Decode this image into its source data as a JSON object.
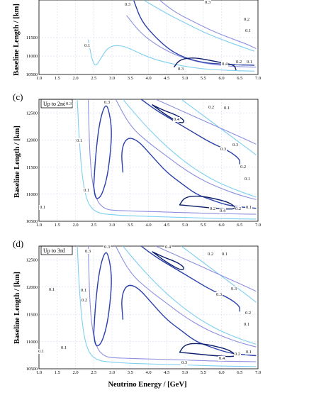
{
  "chart_data": [
    {
      "type": "line",
      "panel_label": "",
      "box_label": "",
      "xlabel": "",
      "ylabel": "Baseline Length / [km]",
      "xlim": [
        1.0,
        7.0
      ],
      "ylim": [
        10500,
        12750
      ],
      "x_ticks": [
        "1.0",
        "1.5",
        "2.0",
        "2.5",
        "3.0",
        "3.5",
        "4.0",
        "4.5",
        "5.0",
        "5.5",
        "6.0",
        "6.5",
        "7.0"
      ],
      "y_ticks": [
        "10500",
        "11000",
        "11500"
      ],
      "contour_labels": [
        "0.3",
        "0.2",
        "0.1",
        "0.1",
        "0.3",
        "0.4",
        "0.2",
        "0.1",
        "0.3"
      ],
      "series": [
        {
          "level": 0.1,
          "color": "#7ecfef",
          "x": [
            2.35,
            2.45,
            2.55,
            2.7,
            2.9,
            3.2,
            3.5,
            3.8,
            4.2,
            4.6,
            5.0,
            5.5,
            6.0,
            6.5,
            6.9
          ],
          "y": [
            11450,
            10900,
            10700,
            10950,
            11250,
            11300,
            11200,
            11050,
            10900,
            10800,
            10720,
            10650,
            10620,
            10600,
            10590
          ]
        },
        {
          "level": 0.1,
          "color": "#7ecfef",
          "x": [
            3.9,
            4.5,
            5.0,
            5.5,
            6.0,
            6.5,
            6.9
          ],
          "y": [
            12500,
            12150,
            11900,
            11650,
            11450,
            11270,
            11130
          ]
        },
        {
          "level": 0.2,
          "color": "#8c8fe0",
          "x": [
            4.2,
            4.7,
            5.2,
            5.7,
            6.2,
            6.7,
            6.95
          ],
          "y": [
            12600,
            12200,
            11950,
            11700,
            11500,
            11320,
            11200
          ]
        },
        {
          "level": 0.2,
          "color": "#8c8fe0",
          "x": [
            3.4,
            3.8,
            4.3,
            4.8,
            5.3,
            5.8,
            6.3,
            6.8,
            6.95
          ],
          "y": [
            12100,
            11600,
            11250,
            11000,
            10850,
            10760,
            10720,
            10700,
            10700
          ]
        },
        {
          "level": 0.3,
          "color": "#2a3fa8",
          "x": [
            3.6,
            3.8,
            4.2,
            4.6,
            5.0,
            5.5,
            6.0,
            6.5,
            6.9
          ],
          "y": [
            12500,
            11950,
            11500,
            11150,
            10950,
            10820,
            10780,
            10760,
            10750
          ]
        },
        {
          "level": 0.4,
          "color": "#0d1f6b",
          "x": [
            4.7,
            4.85,
            5.2,
            5.6,
            6.0,
            6.35,
            6.4
          ],
          "y": [
            10700,
            10900,
            10960,
            10900,
            10820,
            10760,
            10620
          ]
        }
      ]
    },
    {
      "type": "line",
      "panel_label": "(c)",
      "box_label": "Up to 2nd",
      "xlabel": "",
      "ylabel": "Baseline Length / [km]",
      "xlim": [
        1.0,
        7.0
      ],
      "ylim": [
        10500,
        12750
      ],
      "x_ticks": [
        "1.0",
        "1.5",
        "2.0",
        "2.5",
        "3.0",
        "3.5",
        "4.0",
        "4.5",
        "5.0",
        "5.5",
        "6.0",
        "6.5",
        "7.0"
      ],
      "y_ticks": [
        "10500",
        "11000",
        "11500",
        "12000",
        "12500"
      ],
      "contour_labels": [
        "0.3",
        "0.3",
        "0.1",
        "0.1",
        "0.4",
        "0.2",
        "0.1",
        "0.3",
        "0.3",
        "0.2",
        "0.1",
        "0.2",
        "0.4",
        "0.2",
        "0.1",
        "0.1"
      ],
      "series": [
        {
          "level": 0.1,
          "color": "#7ecfef",
          "x": [
            2.05,
            2.1,
            2.2,
            2.35,
            2.6,
            3.0,
            3.5,
            4.0,
            4.5,
            5.0,
            5.5,
            6.0,
            6.5,
            6.95
          ],
          "y": [
            12750,
            12000,
            11200,
            10800,
            10650,
            10620,
            10600,
            10590,
            10580,
            10570,
            10560,
            10550,
            10545,
            10540
          ]
        },
        {
          "level": 0.1,
          "color": "#7ecfef",
          "x": [
            4.9,
            5.3,
            5.8,
            6.3,
            6.8,
            6.95
          ],
          "y": [
            12750,
            12550,
            12300,
            12050,
            11800,
            11720
          ]
        },
        {
          "level": 0.1,
          "color": "#7ecfef",
          "x": [
            3.3,
            3.8,
            4.3,
            4.8,
            5.3,
            5.8,
            6.3,
            6.8,
            6.95
          ],
          "y": [
            12750,
            12350,
            12000,
            11700,
            11450,
            11250,
            11100,
            10980,
            10950
          ]
        },
        {
          "level": 0.2,
          "color": "#8c8fe0",
          "x": [
            2.35,
            2.4,
            2.55,
            2.8,
            3.1,
            3.5,
            4.0,
            4.5,
            5.0,
            5.5,
            6.0,
            6.5,
            6.95
          ],
          "y": [
            12750,
            11500,
            10900,
            10720,
            10700,
            10690,
            10680,
            10670,
            10660,
            10650,
            10640,
            10635,
            10630
          ]
        },
        {
          "level": 0.2,
          "color": "#8c8fe0",
          "x": [
            3.1,
            3.5,
            4.0,
            4.5,
            5.0,
            5.5,
            6.0,
            6.5,
            6.95
          ],
          "y": [
            12750,
            12250,
            11950,
            11700,
            11450,
            11250,
            11100,
            10980,
            10900
          ]
        },
        {
          "level": 0.2,
          "color": "#8c8fe0",
          "x": [
            4.2,
            4.7,
            5.2,
            5.7,
            6.2,
            6.7,
            6.95
          ],
          "y": [
            12750,
            12600,
            12450,
            12300,
            12150,
            12000,
            11920
          ]
        },
        {
          "level": 0.3,
          "color": "#2a3fa8",
          "x": [
            2.5,
            2.55,
            2.65,
            2.8,
            2.9,
            3.0,
            2.95,
            2.85,
            2.7,
            2.55,
            2.5
          ],
          "y": [
            11150,
            11700,
            12300,
            12650,
            12600,
            12200,
            11700,
            11250,
            10950,
            10900,
            11150
          ]
        },
        {
          "level": 0.3,
          "color": "#2a3fa8",
          "x": [
            3.3,
            3.25,
            3.4,
            3.7,
            4.1,
            4.5,
            4.9,
            5.3,
            5.7,
            6.0,
            6.3,
            6.6,
            6.95
          ],
          "y": [
            11400,
            11800,
            12050,
            12000,
            11700,
            11400,
            11200,
            11000,
            10900,
            10830,
            10780,
            10760,
            10740
          ]
        },
        {
          "level": 0.3,
          "color": "#2a3fa8",
          "x": [
            3.8,
            4.2,
            4.7,
            5.2,
            5.7,
            6.2,
            6.5,
            6.5
          ],
          "y": [
            12750,
            12550,
            12350,
            12150,
            11950,
            11800,
            11650,
            11550
          ]
        },
        {
          "level": 0.4,
          "color": "#0d1f6b",
          "x": [
            4.1,
            4.4,
            4.8,
            5.0,
            4.9,
            4.5,
            4.2,
            4.1
          ],
          "y": [
            12650,
            12550,
            12450,
            12350,
            12300,
            12450,
            12600,
            12650
          ]
        },
        {
          "level": 0.4,
          "color": "#0d1f6b",
          "x": [
            4.85,
            5.0,
            5.4,
            5.8,
            6.2,
            6.4,
            6.3,
            5.8,
            5.2,
            4.9,
            4.85
          ],
          "y": [
            10800,
            10950,
            10970,
            10920,
            10850,
            10750,
            10720,
            10740,
            10780,
            10800,
            10800
          ]
        }
      ]
    },
    {
      "type": "line",
      "panel_label": "(d)",
      "box_label": "Up to 3rd",
      "xlabel": "Neutrino Energy / [GeV]",
      "ylabel": "Baseline Length / [km]",
      "xlim": [
        1.0,
        7.0
      ],
      "ylim": [
        10500,
        12750
      ],
      "x_ticks": [
        "1.0",
        "1.5",
        "2.0",
        "2.5",
        "3.0",
        "3.5",
        "4.0",
        "4.5",
        "5.0",
        "5.5",
        "6.0",
        "6.5",
        "7.0"
      ],
      "y_ticks": [
        "10500",
        "11000",
        "11500",
        "12000",
        "12500"
      ],
      "contour_labels": [
        "0.3",
        "0.3",
        "0.1",
        "0.4",
        "0.2",
        "0.1",
        "0.1",
        "0.1",
        "0.2",
        "0.3",
        "0.3",
        "0.2",
        "0.1",
        "0.2",
        "0.1",
        "0.1",
        "0.4",
        "0.3"
      ],
      "series": [
        {
          "level": 0.1,
          "color": "#7ecfef",
          "x": [
            2.05,
            2.1,
            2.2,
            2.35,
            2.6,
            3.0,
            3.5,
            4.0,
            4.5,
            5.0,
            5.5,
            6.0,
            6.5,
            6.95
          ],
          "y": [
            12750,
            12000,
            11200,
            10800,
            10650,
            10620,
            10600,
            10590,
            10580,
            10570,
            10560,
            10550,
            10545,
            10540
          ]
        },
        {
          "level": 0.1,
          "color": "#7ecfef",
          "x": [
            4.9,
            5.3,
            5.8,
            6.3,
            6.8,
            6.95
          ],
          "y": [
            12750,
            12550,
            12300,
            12050,
            11800,
            11720
          ]
        },
        {
          "level": 0.1,
          "color": "#7ecfef",
          "x": [
            3.3,
            3.8,
            4.3,
            4.8,
            5.3,
            5.8,
            6.3,
            6.8,
            6.95
          ],
          "y": [
            12750,
            12350,
            12000,
            11700,
            11450,
            11250,
            11100,
            10980,
            10950
          ]
        },
        {
          "level": 0.2,
          "color": "#8c8fe0",
          "x": [
            2.35,
            2.4,
            2.55,
            2.8,
            3.1,
            3.5,
            4.0,
            4.5,
            5.0,
            5.5,
            6.0,
            6.5,
            6.95
          ],
          "y": [
            12750,
            11500,
            10900,
            10720,
            10700,
            10690,
            10680,
            10670,
            10660,
            10650,
            10640,
            10635,
            10630
          ]
        },
        {
          "level": 0.2,
          "color": "#8c8fe0",
          "x": [
            3.1,
            3.5,
            4.0,
            4.5,
            5.0,
            5.5,
            6.0,
            6.5,
            6.95
          ],
          "y": [
            12750,
            12250,
            11950,
            11700,
            11450,
            11250,
            11100,
            10980,
            10900
          ]
        },
        {
          "level": 0.2,
          "color": "#8c8fe0",
          "x": [
            4.2,
            4.7,
            5.2,
            5.7,
            6.2,
            6.7,
            6.95
          ],
          "y": [
            12750,
            12600,
            12450,
            12300,
            12150,
            12000,
            11920
          ]
        },
        {
          "level": 0.3,
          "color": "#2a3fa8",
          "x": [
            2.5,
            2.55,
            2.65,
            2.8,
            2.9,
            3.0,
            2.95,
            2.85,
            2.7,
            2.55,
            2.5
          ],
          "y": [
            11150,
            11700,
            12300,
            12650,
            12600,
            12200,
            11700,
            11250,
            10950,
            10900,
            11150
          ]
        },
        {
          "level": 0.3,
          "color": "#2a3fa8",
          "x": [
            3.3,
            3.25,
            3.4,
            3.7,
            4.1,
            4.5,
            4.9,
            5.3,
            5.7,
            6.0,
            6.3,
            6.6,
            6.95
          ],
          "y": [
            11400,
            11800,
            12050,
            12000,
            11700,
            11400,
            11200,
            11000,
            10900,
            10830,
            10780,
            10760,
            10740
          ]
        },
        {
          "level": 0.3,
          "color": "#2a3fa8",
          "x": [
            3.8,
            4.2,
            4.7,
            5.2,
            5.7,
            6.2,
            6.5,
            6.5
          ],
          "y": [
            12750,
            12550,
            12350,
            12150,
            11950,
            11800,
            11650,
            11550
          ]
        },
        {
          "level": 0.4,
          "color": "#0d1f6b",
          "x": [
            4.1,
            4.4,
            4.8,
            5.0,
            4.9,
            4.5,
            4.2,
            4.1
          ],
          "y": [
            12650,
            12550,
            12450,
            12350,
            12300,
            12450,
            12600,
            12650
          ]
        },
        {
          "level": 0.4,
          "color": "#0d1f6b",
          "x": [
            4.85,
            5.0,
            5.4,
            5.8,
            6.2,
            6.4,
            6.3,
            5.8,
            5.2,
            4.9,
            4.85
          ],
          "y": [
            10800,
            10950,
            10970,
            10920,
            10850,
            10750,
            10720,
            10740,
            10780,
            10800,
            10800
          ]
        }
      ]
    }
  ]
}
